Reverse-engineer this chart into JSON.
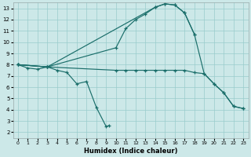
{
  "xlabel": "Humidex (Indice chaleur)",
  "bg_color": "#cce8e8",
  "grid_color": "#99cccc",
  "line_color": "#1a6e6a",
  "xlim": [
    -0.5,
    23.5
  ],
  "ylim": [
    1.5,
    13.5
  ],
  "xticks": [
    0,
    1,
    2,
    3,
    4,
    5,
    6,
    7,
    8,
    9,
    10,
    11,
    12,
    13,
    14,
    15,
    16,
    17,
    18,
    19,
    20,
    21,
    22,
    23
  ],
  "yticks": [
    2,
    3,
    4,
    5,
    6,
    7,
    8,
    9,
    10,
    11,
    12,
    13
  ],
  "upper_curve_x": [
    0,
    1,
    2,
    3,
    10,
    11,
    12,
    13,
    14,
    15,
    16,
    17,
    18
  ],
  "upper_curve_y": [
    8,
    7.7,
    7.6,
    7.8,
    9.5,
    11.2,
    12.0,
    12.5,
    13.1,
    13.4,
    13.3,
    12.6,
    10.7
  ],
  "dip_curve_x": [
    0,
    3,
    4,
    5,
    6,
    7,
    8,
    9,
    9.3
  ],
  "dip_curve_y": [
    8,
    7.8,
    7.5,
    7.3,
    6.3,
    6.5,
    4.2,
    2.5,
    2.6
  ],
  "flat_line_x": [
    0,
    3,
    10,
    11,
    12,
    13,
    14,
    15,
    16,
    17,
    18,
    19,
    20,
    21,
    22,
    23
  ],
  "flat_line_y": [
    8,
    7.8,
    7.5,
    7.5,
    7.5,
    7.5,
    7.5,
    7.5,
    7.5,
    7.5,
    7.3,
    7.2,
    6.3,
    5.5,
    4.3,
    4.1
  ],
  "diag_line_x": [
    0,
    3,
    14,
    15,
    16,
    17,
    18,
    19,
    20,
    21,
    22,
    23
  ],
  "diag_line_y": [
    8,
    7.8,
    13.1,
    13.4,
    13.3,
    12.6,
    10.7,
    7.2,
    6.3,
    5.5,
    4.3,
    4.1
  ]
}
